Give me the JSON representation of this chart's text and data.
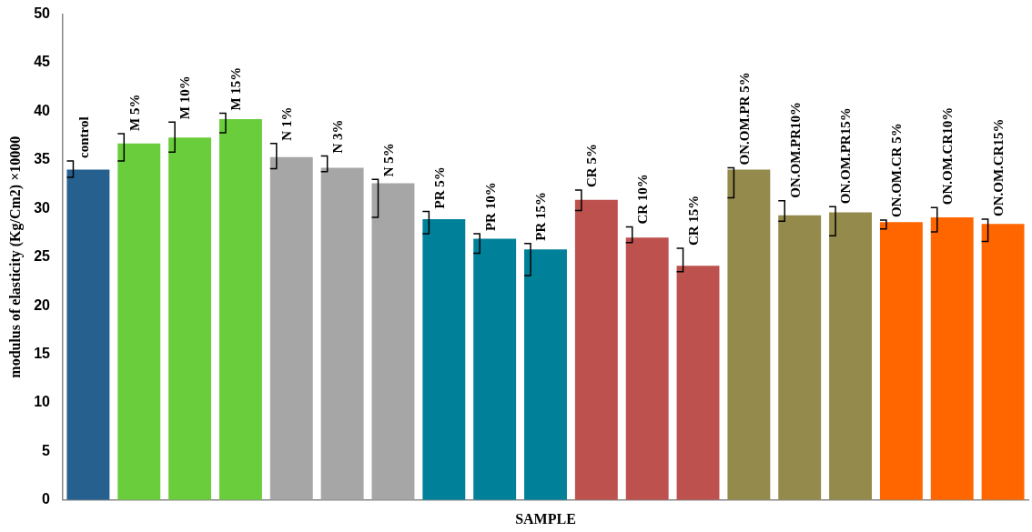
{
  "chart_data": {
    "type": "bar",
    "xlabel": "SAMPLE",
    "ylabel": "modulus of elasticity (Kg/Cm2) ×10000",
    "categories": [
      "control",
      "M 5%",
      "M 10%",
      "M 15%",
      "N 1%",
      "N 3%",
      "N 5%",
      "PR 5%",
      "PR 10%",
      "PR 15%",
      "CR 5%",
      "CR 10%",
      "CR 15%",
      "ON.OM.PR 5%",
      "ON.OM.PR10%",
      "ON.OM.PR15%",
      "ON.OM.CR 5%",
      "ON.OM.CR10%",
      "ON.OM.CR15%"
    ],
    "values": [
      34.0,
      36.7,
      37.3,
      39.2,
      35.3,
      34.2,
      32.6,
      28.9,
      26.9,
      25.8,
      30.9,
      27.0,
      24.1,
      34.0,
      29.3,
      29.6,
      28.6,
      29.1,
      28.4
    ],
    "errors": [
      [
        33.2,
        34.9
      ],
      [
        34.9,
        37.7
      ],
      [
        35.8,
        38.9
      ],
      [
        37.8,
        39.8
      ],
      [
        34.1,
        36.7
      ],
      [
        33.8,
        35.4
      ],
      [
        29.1,
        33.0
      ],
      [
        27.4,
        29.7
      ],
      [
        25.4,
        27.4
      ],
      [
        23.1,
        26.4
      ],
      [
        29.8,
        31.9
      ],
      [
        26.5,
        28.1
      ],
      [
        23.5,
        25.9
      ],
      [
        31.1,
        34.2
      ],
      [
        28.7,
        30.8
      ],
      [
        27.2,
        30.2
      ],
      [
        27.9,
        28.8
      ],
      [
        27.6,
        30.1
      ],
      [
        26.6,
        28.9
      ]
    ],
    "colors": [
      "#26608f",
      "#6acd3c",
      "#6acd3c",
      "#6acd3c",
      "#a6a6a6",
      "#a6a6a6",
      "#a6a6a6",
      "#008199",
      "#008199",
      "#008199",
      "#bc514e",
      "#bc514e",
      "#bc514e",
      "#948a4c",
      "#948a4c",
      "#948a4c",
      "#ff6600",
      "#ff6600",
      "#ff6600"
    ],
    "ylim": [
      0,
      50
    ],
    "yticks": [
      0,
      5,
      10,
      15,
      20,
      25,
      30,
      35,
      40,
      45,
      50
    ],
    "grid": false,
    "legend": false
  }
}
